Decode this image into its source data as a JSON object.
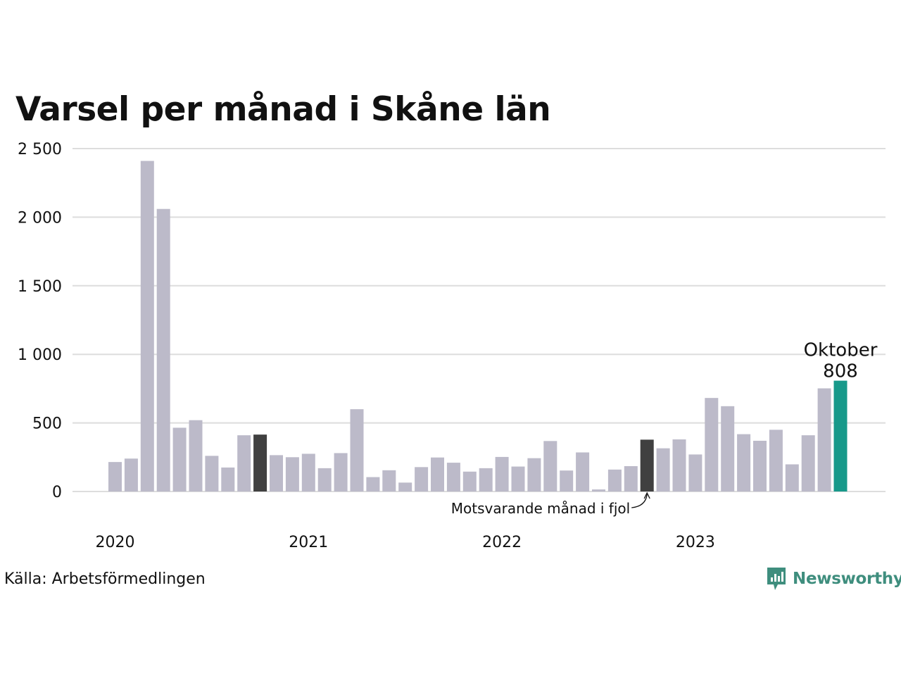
{
  "chart_data": {
    "type": "bar",
    "title": "Varsel per månad i Skåne län",
    "ylim": [
      0,
      2500
    ],
    "yticks": [
      0,
      500,
      1000,
      1500,
      2000,
      2500
    ],
    "ytick_labels": [
      "0",
      "500",
      "1 000",
      "1 500",
      "2 000",
      "2 500"
    ],
    "year_labels": [
      {
        "label": "2020",
        "index": 0
      },
      {
        "label": "2021",
        "index": 12
      },
      {
        "label": "2022",
        "index": 24
      },
      {
        "label": "2023",
        "index": 36
      }
    ],
    "values": [
      215,
      240,
      2410,
      2060,
      465,
      520,
      260,
      175,
      410,
      415,
      265,
      250,
      275,
      170,
      280,
      600,
      105,
      155,
      65,
      178,
      248,
      210,
      145,
      170,
      252,
      182,
      243,
      368,
      153,
      285,
      15,
      160,
      185,
      378,
      315,
      380,
      270,
      682,
      622,
      418,
      370,
      450,
      198,
      410,
      752,
      808
    ],
    "highlight_previous_year_indices": [
      9,
      33
    ],
    "current_index": 45,
    "current_label": "Oktober",
    "current_value_label": "808",
    "previous_year_annotation": "Motsvarande månad i fjol",
    "grid": true,
    "colors": {
      "bar": "#bcbac9",
      "previous_year": "#404040",
      "current": "#17998a",
      "grid": "#dddddd"
    }
  },
  "source": "Källa: Arbetsförmedlingen",
  "brand": {
    "name": "Newsworthy",
    "logo_icon": "newsworthy-logo-icon",
    "color": "#3f8e7e"
  }
}
